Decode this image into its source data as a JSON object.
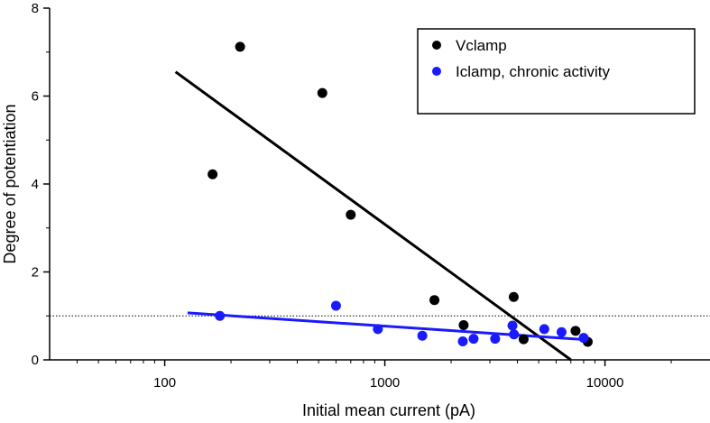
{
  "chart_data": {
    "type": "scatter",
    "xlabel": "Initial mean current (pA)",
    "ylabel": "Degree of potentiation",
    "x_scale": "log",
    "xlim": [
      30,
      30000
    ],
    "ylim": [
      0,
      8
    ],
    "x_ticks": [
      100,
      1000,
      10000
    ],
    "x_tick_labels": [
      "100",
      "1000",
      "10000"
    ],
    "y_ticks": [
      0,
      2,
      4,
      6,
      8
    ],
    "y_tick_labels": [
      "0",
      "2",
      "4",
      "6",
      "8"
    ],
    "reference_line": {
      "y": 1,
      "style": "dotted"
    },
    "legend_position": "top-right",
    "grid": false,
    "series": [
      {
        "name": "Vclamp",
        "color": "#000000",
        "points": [
          {
            "x": 165,
            "y": 4.22
          },
          {
            "x": 220,
            "y": 7.12
          },
          {
            "x": 520,
            "y": 6.07
          },
          {
            "x": 700,
            "y": 3.3
          },
          {
            "x": 1680,
            "y": 1.36
          },
          {
            "x": 2280,
            "y": 0.79
          },
          {
            "x": 3850,
            "y": 1.43
          },
          {
            "x": 4270,
            "y": 0.47
          },
          {
            "x": 7350,
            "y": 0.66
          },
          {
            "x": 8350,
            "y": 0.41
          }
        ],
        "fit": [
          {
            "x": 112,
            "y": 6.55
          },
          {
            "x": 7000,
            "y": 0.0
          }
        ]
      },
      {
        "name": "Iclamp, chronic activity",
        "color": "#1a1aff",
        "points": [
          {
            "x": 178,
            "y": 1.0
          },
          {
            "x": 600,
            "y": 1.23
          },
          {
            "x": 930,
            "y": 0.7
          },
          {
            "x": 1480,
            "y": 0.55
          },
          {
            "x": 2260,
            "y": 0.42
          },
          {
            "x": 2530,
            "y": 0.48
          },
          {
            "x": 3170,
            "y": 0.48
          },
          {
            "x": 3800,
            "y": 0.78
          },
          {
            "x": 3860,
            "y": 0.58
          },
          {
            "x": 5300,
            "y": 0.7
          },
          {
            "x": 6350,
            "y": 0.63
          },
          {
            "x": 8000,
            "y": 0.5
          }
        ],
        "fit": [
          {
            "x": 127,
            "y": 1.07
          },
          {
            "x": 8700,
            "y": 0.45
          }
        ]
      }
    ]
  }
}
